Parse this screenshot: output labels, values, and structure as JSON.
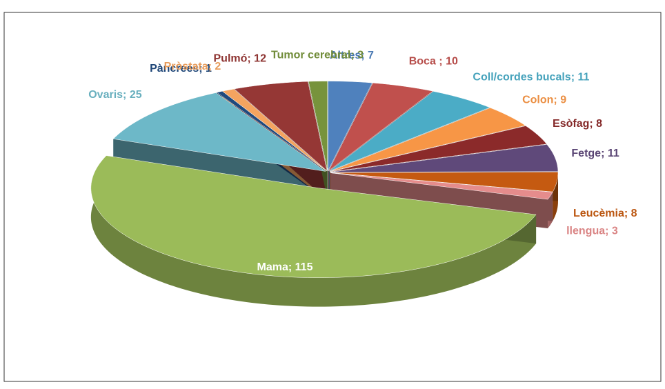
{
  "chart_data": {
    "type": "pie",
    "values": [
      7,
      10,
      11,
      9,
      8,
      11,
      8,
      3,
      115,
      25,
      1,
      2,
      12,
      3
    ],
    "value_labels": [
      "Altres; 7",
      "Boca ; 10",
      "Coll/cordes bucals; 11",
      "Colon; 9",
      "Esòfag; 8",
      "Fetge; 11",
      "Leucèmia; 8",
      "llengua; 3",
      "Mama; 115",
      "Ovaris; 25",
      "Pàncrees; 1",
      "Pròstata; 2",
      "Pulmó; 12",
      "Tumor cerebral; 3"
    ],
    "colors": [
      "#4f81bd",
      "#c0504d",
      "#4bacc6",
      "#f79646",
      "#8b2a2a",
      "#5f497a",
      "#c55a11",
      "#e58c8c",
      "#9bbb59",
      "#6db8c8",
      "#1f497d",
      "#f4a460",
      "#953735",
      "#77933c"
    ],
    "exploded": [
      8
    ]
  }
}
